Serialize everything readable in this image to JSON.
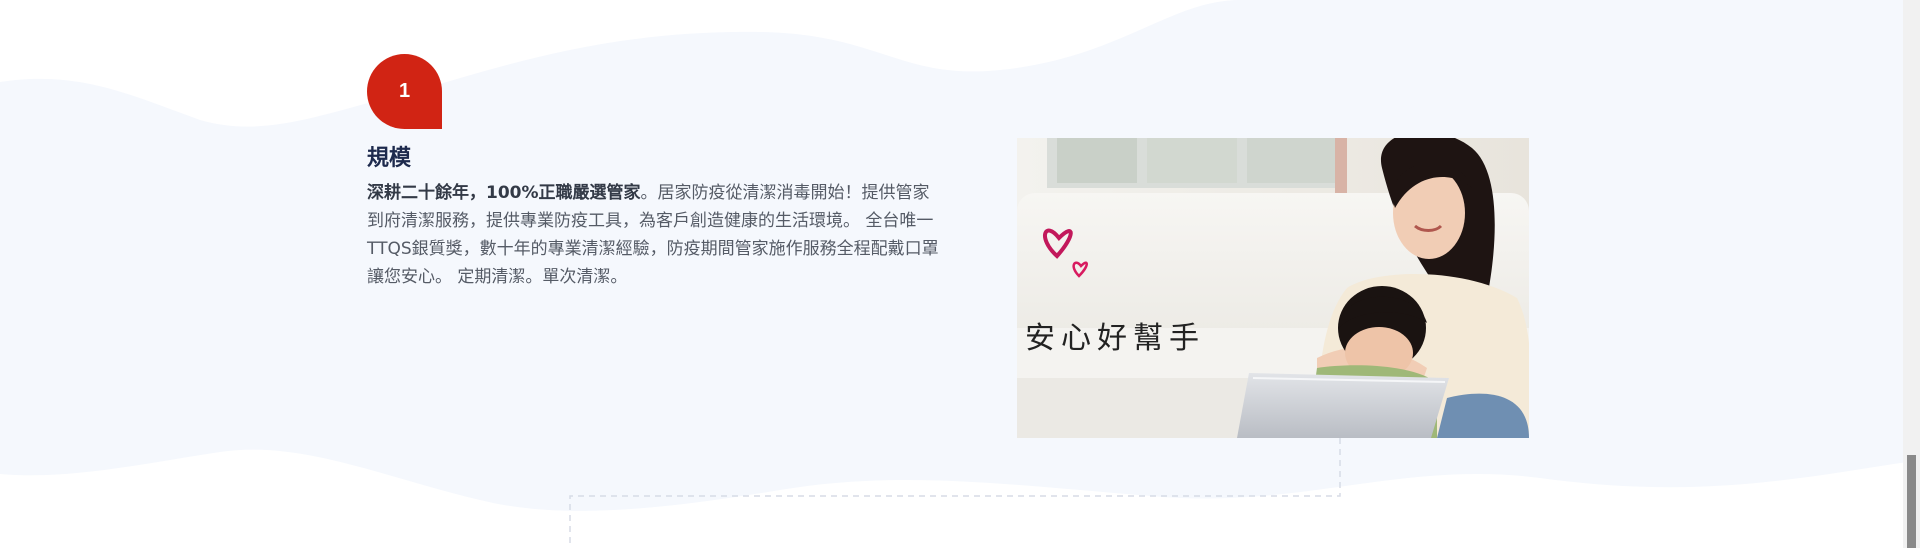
{
  "step": {
    "number": "1",
    "title": "規模",
    "desc_strong": "深耕二十餘年，100%正職嚴選管家",
    "desc_rest": "。居家防疫從清潔消毒開始！提供管家到府清潔服務，提供專業防疫工具，為客戶創造健康的生活環境。 全台唯一TTQS銀質獎，數十年的專業清潔經驗，防疫期間管家施作服務全程配戴口罩讓您安心。 定期清潔。單次清潔。"
  },
  "photo": {
    "caption": "安心好幫手",
    "icon": "hearts-icon"
  },
  "colors": {
    "badge": "#d12414",
    "title": "#1d2a4d",
    "wave": "#f5f8fd"
  }
}
